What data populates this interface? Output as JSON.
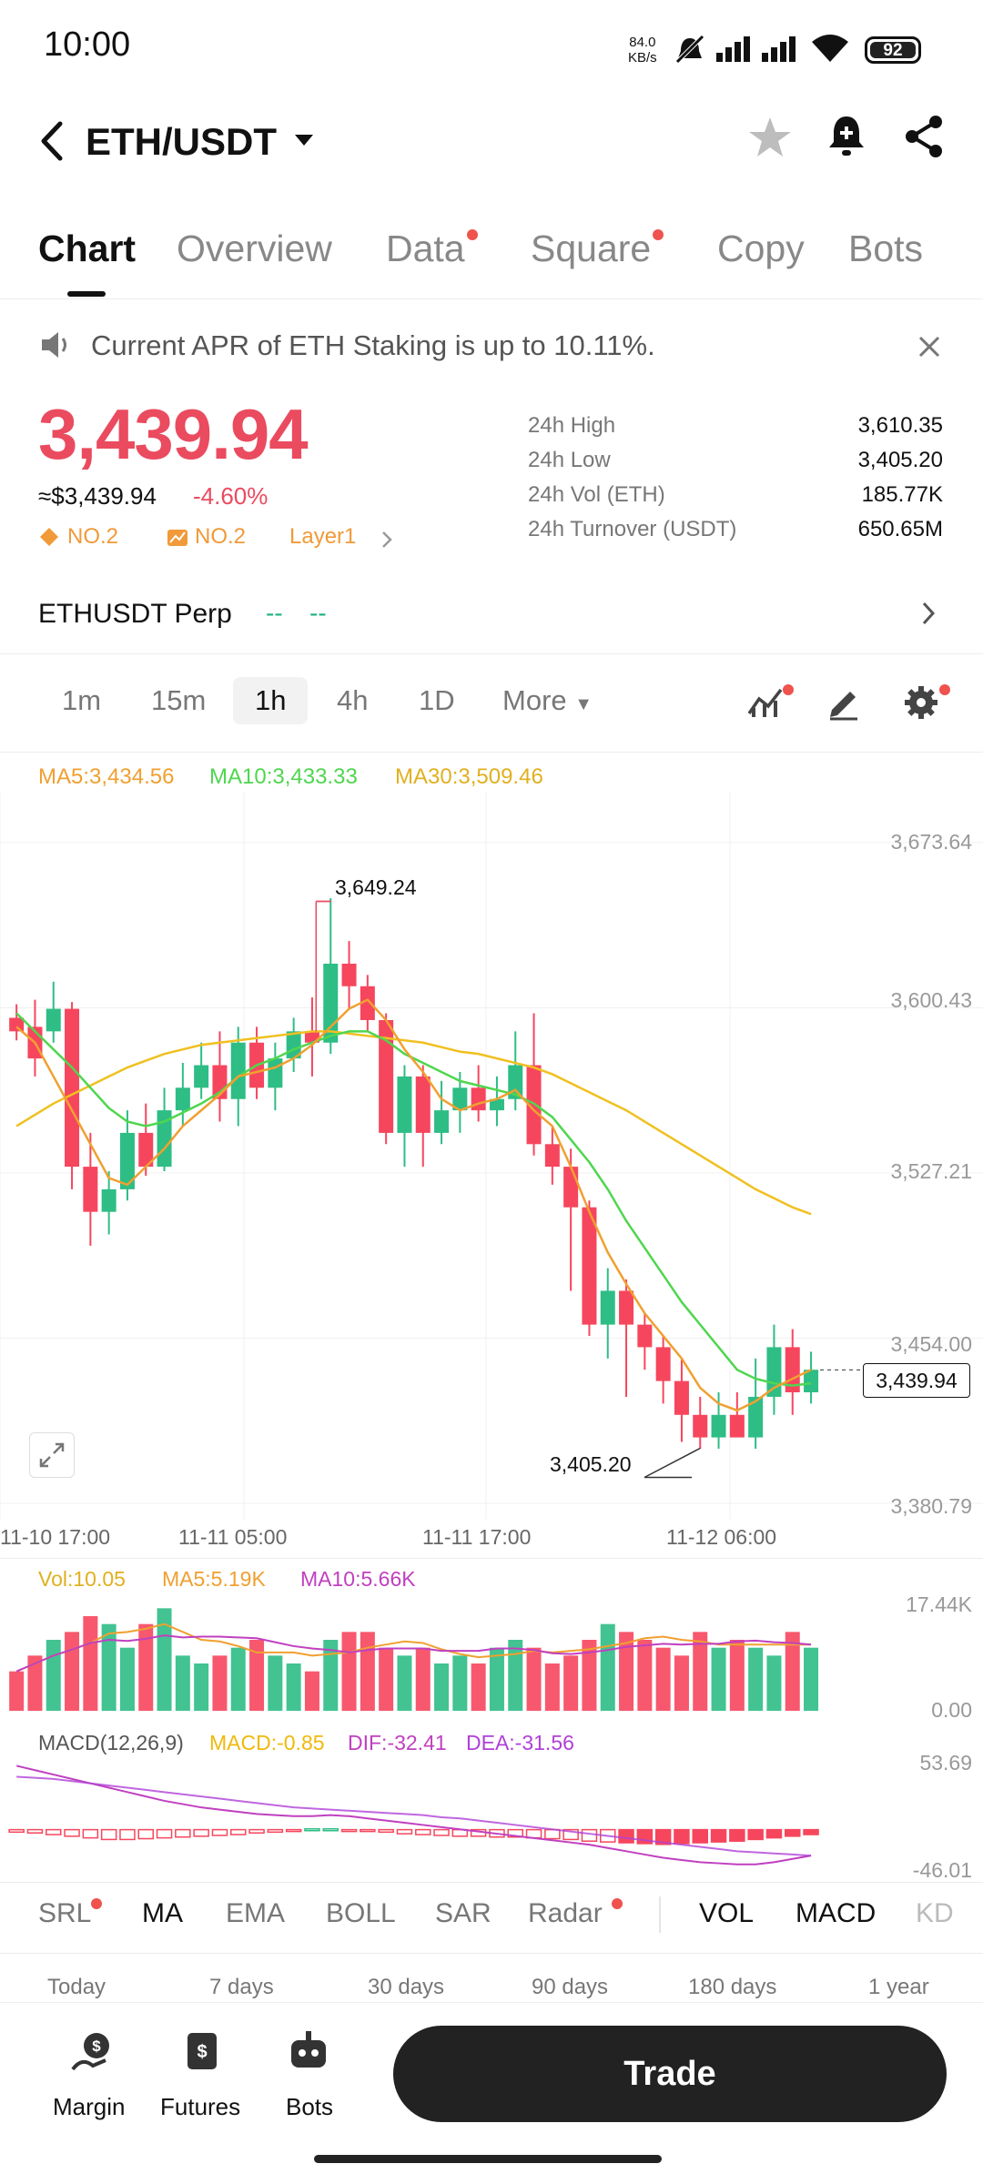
{
  "status_bar": {
    "time": "10:00",
    "net_speed": "84.0",
    "net_unit": "KB/s",
    "battery": "92"
  },
  "header": {
    "pair": "ETH/USDT"
  },
  "tabs": [
    {
      "label": "Chart",
      "active": true
    },
    {
      "label": "Overview"
    },
    {
      "label": "Data",
      "dot": true
    },
    {
      "label": "Square",
      "dot": true
    },
    {
      "label": "Copy"
    },
    {
      "label": "Bots"
    }
  ],
  "notice": {
    "text": "Current APR of ETH Staking is up to 10.11%."
  },
  "ticker": {
    "price": "3,439.94",
    "usd_price": "≈$3,439.94",
    "change": "-4.60%",
    "rank1": "NO.2",
    "rank2": "NO.2",
    "tag": "Layer1",
    "stats": [
      {
        "label": "24h High",
        "value": "3,610.35"
      },
      {
        "label": "24h Low",
        "value": "3,405.20"
      },
      {
        "label": "24h Vol (ETH)",
        "value": "185.77K"
      },
      {
        "label": "24h Turnover (USDT)",
        "value": "650.65M"
      }
    ]
  },
  "perp": {
    "label": "ETHUSDT Perp",
    "value1": "--",
    "value2": "--"
  },
  "timeframes": [
    "1m",
    "15m",
    "1h",
    "4h",
    "1D"
  ],
  "timeframe_active": "1h",
  "more_label": "More",
  "ma_legend": {
    "ma5": "MA5:3,434.56",
    "ma10": "MA10:3,433.33",
    "ma30": "MA30:3,509.46"
  },
  "colors": {
    "up": "#2ebd85",
    "down": "#f6465d",
    "ma5": "#f0a030",
    "ma10": "#4fd64f",
    "ma30": "#f0c020",
    "macd": "#f0b90b",
    "dif": "#c040c0",
    "dea": "#b040d8"
  },
  "y_axis": [
    "3,673.64",
    "3,600.43",
    "3,527.21",
    "3,454.00",
    "3,380.79"
  ],
  "x_axis": [
    "11-10 17:00",
    "11-11 05:00",
    "11-11 17:00",
    "11-12 06:00"
  ],
  "annotations": {
    "high": "3,649.24",
    "low": "3,405.20",
    "current": "3,439.94"
  },
  "volume": {
    "legend_vol": "Vol:10.05",
    "legend_ma5": "MA5:5.19K",
    "legend_ma10": "MA10:5.66K",
    "max": "17.44K",
    "min": "0.00"
  },
  "macd": {
    "title": "MACD(12,26,9)",
    "macd": "MACD:-0.85",
    "dif": "DIF:-32.41",
    "dea": "DEA:-31.56",
    "max": "53.69",
    "min": "-46.01"
  },
  "indicators": [
    {
      "label": "SRL",
      "dot": true
    },
    {
      "label": "MA",
      "active": true
    },
    {
      "label": "EMA"
    },
    {
      "label": "BOLL"
    },
    {
      "label": "SAR"
    },
    {
      "label": "Radar",
      "dot": true
    },
    {
      "label": "VOL",
      "active": true
    },
    {
      "label": "MACD",
      "active": true
    },
    {
      "label": "KD"
    }
  ],
  "ranges": [
    "Today",
    "7 days",
    "30 days",
    "90 days",
    "180 days",
    "1 year"
  ],
  "bottom_nav": {
    "margin": "Margin",
    "futures": "Futures",
    "bots": "Bots",
    "trade": "Trade"
  },
  "chart_data": {
    "type": "candlestick",
    "series": [
      {
        "name": "candles",
        "values": [
          [
            3596,
            3590,
            3602,
            3586
          ],
          [
            3592,
            3578,
            3604,
            3570
          ],
          [
            3590,
            3600,
            3612,
            3585
          ],
          [
            3600,
            3530,
            3603,
            3520
          ],
          [
            3530,
            3510,
            3545,
            3495
          ],
          [
            3510,
            3520,
            3528,
            3500
          ],
          [
            3520,
            3545,
            3555,
            3515
          ],
          [
            3545,
            3530,
            3558,
            3526
          ],
          [
            3530,
            3555,
            3565,
            3528
          ],
          [
            3555,
            3565,
            3576,
            3548
          ],
          [
            3565,
            3575,
            3585,
            3560
          ],
          [
            3575,
            3560,
            3590,
            3550
          ],
          [
            3560,
            3585,
            3592,
            3548
          ],
          [
            3585,
            3565,
            3592,
            3560
          ],
          [
            3565,
            3578,
            3585,
            3555
          ],
          [
            3578,
            3590,
            3596,
            3572
          ],
          [
            3590,
            3585,
            3605,
            3570
          ],
          [
            3585,
            3620,
            3649,
            3580
          ],
          [
            3620,
            3610,
            3630,
            3600
          ],
          [
            3610,
            3595,
            3615,
            3590
          ],
          [
            3595,
            3545,
            3598,
            3540
          ],
          [
            3545,
            3570,
            3575,
            3530
          ],
          [
            3570,
            3545,
            3575,
            3530
          ],
          [
            3545,
            3555,
            3568,
            3540
          ],
          [
            3555,
            3565,
            3572,
            3545
          ],
          [
            3565,
            3555,
            3575,
            3550
          ],
          [
            3555,
            3560,
            3570,
            3548
          ],
          [
            3560,
            3575,
            3590,
            3555
          ],
          [
            3575,
            3540,
            3598,
            3535
          ],
          [
            3540,
            3530,
            3548,
            3522
          ],
          [
            3530,
            3512,
            3538,
            3475
          ],
          [
            3512,
            3460,
            3515,
            3455
          ],
          [
            3460,
            3475,
            3485,
            3445
          ],
          [
            3475,
            3460,
            3480,
            3428
          ],
          [
            3460,
            3450,
            3465,
            3440
          ],
          [
            3450,
            3435,
            3455,
            3425
          ],
          [
            3435,
            3420,
            3445,
            3408
          ],
          [
            3420,
            3410,
            3428,
            3405
          ],
          [
            3410,
            3420,
            3430,
            3405
          ],
          [
            3420,
            3410,
            3430,
            3412
          ],
          [
            3410,
            3428,
            3445,
            3405
          ],
          [
            3428,
            3450,
            3460,
            3420
          ],
          [
            3450,
            3430,
            3458,
            3420
          ],
          [
            3430,
            3440,
            3448,
            3425
          ]
        ]
      }
    ],
    "ma5": [
      3592,
      3585,
      3570,
      3555,
      3540,
      3525,
      3522,
      3530,
      3538,
      3548,
      3555,
      3562,
      3570,
      3572,
      3574,
      3578,
      3584,
      3592,
      3600,
      3604,
      3595,
      3582,
      3572,
      3560,
      3555,
      3558,
      3560,
      3564,
      3555,
      3548,
      3530,
      3510,
      3492,
      3478,
      3465,
      3455,
      3445,
      3432,
      3425,
      3422,
      3426,
      3432,
      3436,
      3440
    ],
    "ma10": [
      3598,
      3590,
      3582,
      3574,
      3565,
      3556,
      3550,
      3548,
      3550,
      3554,
      3558,
      3563,
      3570,
      3575,
      3578,
      3582,
      3585,
      3588,
      3590,
      3590,
      3586,
      3580,
      3576,
      3572,
      3568,
      3566,
      3564,
      3562,
      3558,
      3552,
      3542,
      3532,
      3520,
      3506,
      3494,
      3482,
      3470,
      3460,
      3450,
      3440,
      3436,
      3434,
      3433,
      3434
    ],
    "ma30": [
      3548,
      3553,
      3558,
      3562,
      3566,
      3570,
      3574,
      3577,
      3580,
      3582,
      3584,
      3585,
      3586,
      3587,
      3588,
      3589,
      3590,
      3590,
      3589,
      3588,
      3587,
      3586,
      3585,
      3583,
      3581,
      3580,
      3578,
      3576,
      3574,
      3571,
      3567,
      3563,
      3559,
      3555,
      3550,
      3545,
      3540,
      3535,
      3530,
      3525,
      3520,
      3516,
      3512,
      3509
    ],
    "volume": [
      5,
      7,
      9,
      10,
      12,
      11,
      8,
      11,
      13,
      7,
      6,
      7,
      8,
      9,
      7,
      6,
      5,
      9,
      10,
      10,
      8,
      7,
      8,
      6,
      7,
      6,
      8,
      9,
      8,
      6,
      7,
      9,
      11,
      10,
      9,
      8,
      7,
      10,
      8,
      9,
      8,
      7,
      10,
      8
    ],
    "macd_hist": [
      -3,
      -4,
      -6,
      -8,
      -10,
      -12,
      -12,
      -11,
      -10,
      -9,
      -8,
      -7,
      -6,
      -4,
      -3,
      -2,
      1,
      1,
      -1,
      -2,
      -3,
      -5,
      -6,
      -7,
      -8,
      -8,
      -9,
      -9,
      -10,
      -11,
      -12,
      -14,
      -15,
      -16,
      -17,
      -18,
      -17,
      -16,
      -15,
      -14,
      -12,
      -10,
      -8,
      -6
    ],
    "dif": [
      50,
      46,
      42,
      38,
      34,
      30,
      26,
      22,
      18,
      15,
      12,
      10,
      8,
      6,
      5,
      4,
      4,
      5,
      4,
      2,
      0,
      -2,
      -4,
      -6,
      -8,
      -10,
      -12,
      -14,
      -16,
      -18,
      -20,
      -22,
      -25,
      -28,
      -31,
      -34,
      -36,
      -38,
      -39,
      -40,
      -40,
      -38,
      -35,
      -32
    ],
    "dea": [
      40,
      39,
      38,
      36,
      34,
      32,
      30,
      28,
      26,
      24,
      22,
      20,
      18,
      16,
      14,
      12,
      11,
      10,
      9,
      8,
      7,
      6,
      5,
      3,
      2,
      0,
      -2,
      -4,
      -6,
      -8,
      -10,
      -12,
      -14,
      -16,
      -18,
      -20,
      -22,
      -24,
      -26,
      -28,
      -29,
      -30,
      -31,
      -32
    ],
    "ylim": [
      3380.79,
      3673.64
    ]
  }
}
